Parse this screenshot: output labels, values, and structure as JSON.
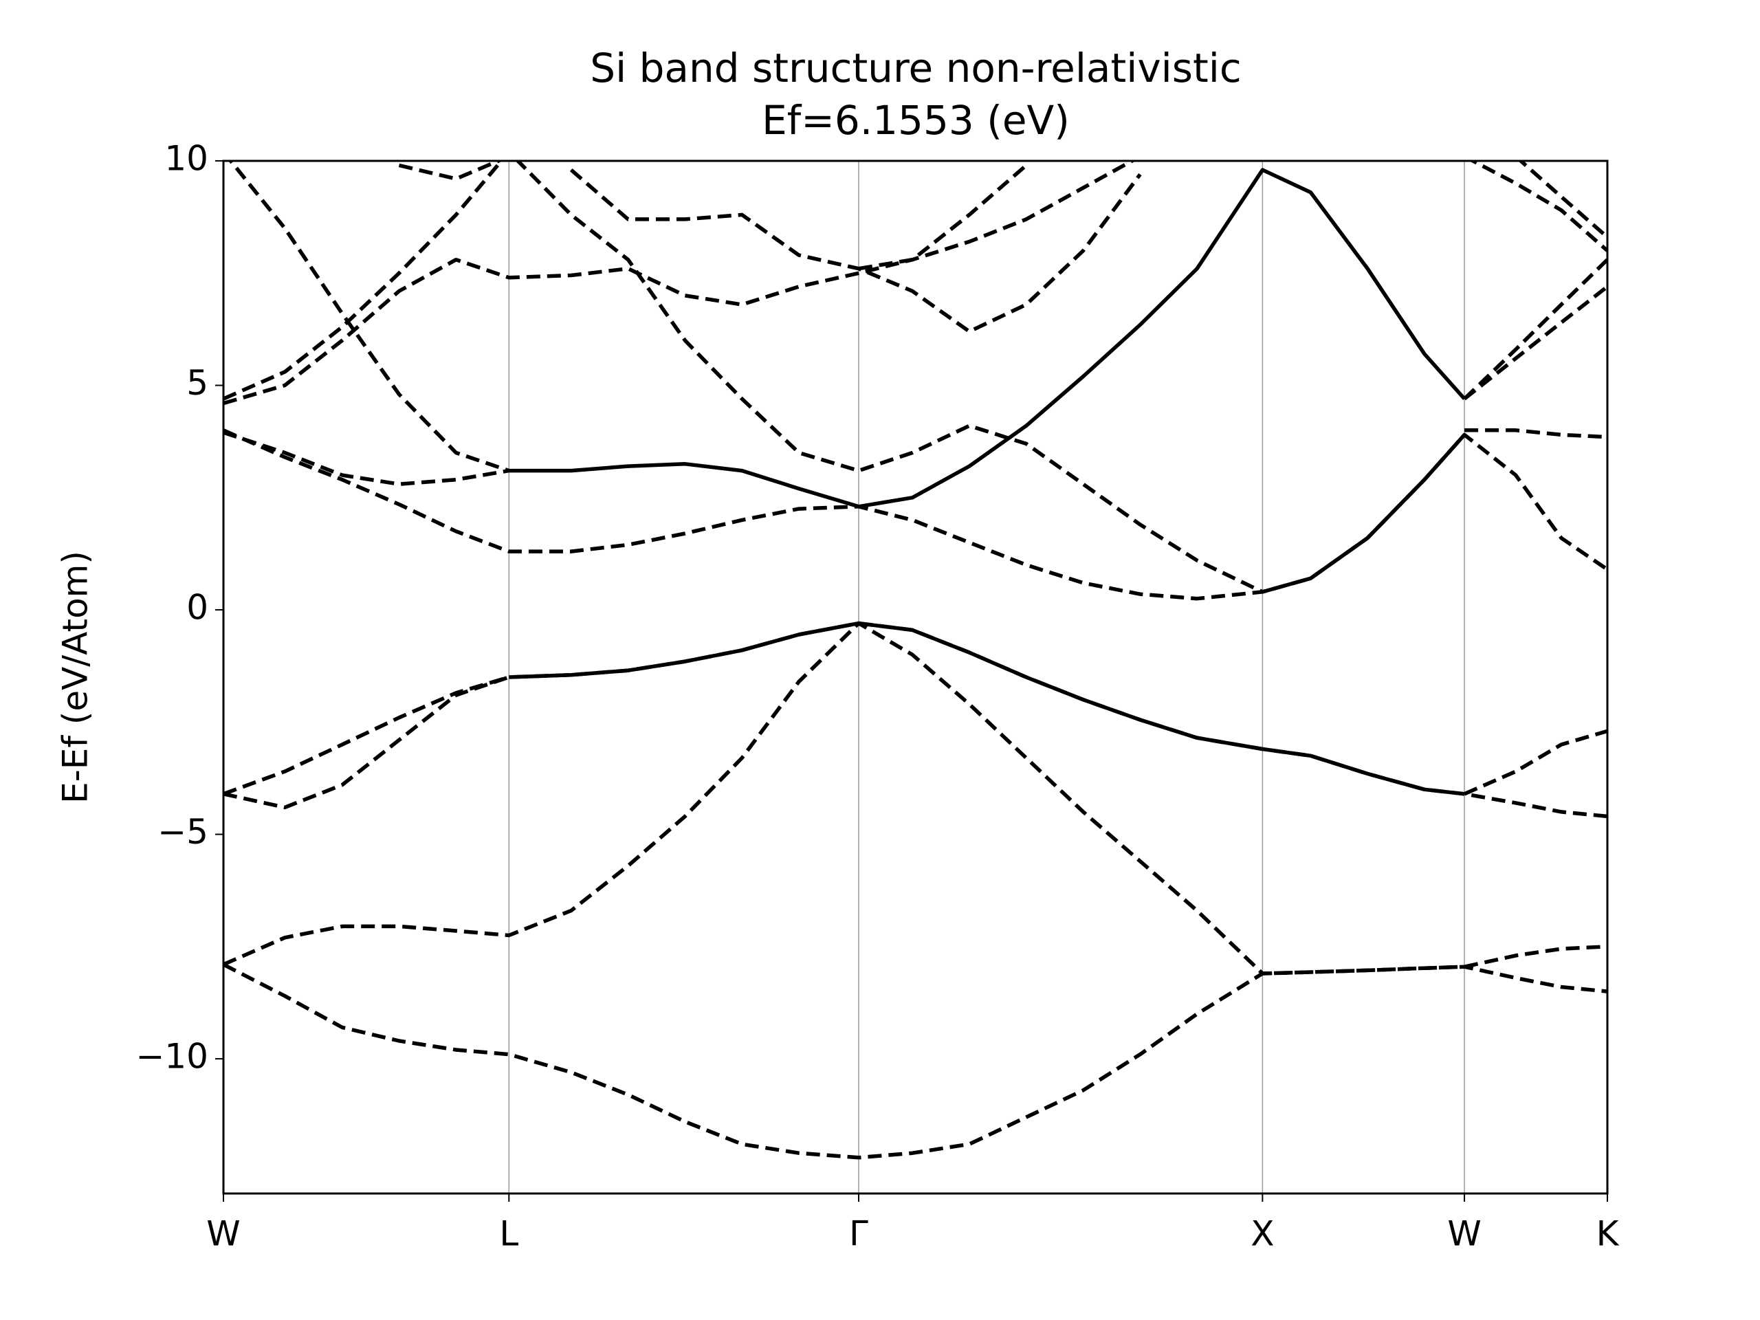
{
  "chart_data": {
    "type": "line",
    "title": "Si band structure non-relativistic",
    "subtitle": "Ef=6.1553 (eV)",
    "y_label": "E-Ef (eV/Atom)",
    "x": [
      0,
      0.152,
      0.294,
      0.435,
      0.576,
      0.707,
      0.861,
      1.002,
      1.143,
      1.284,
      1.425,
      1.573,
      1.706,
      1.847,
      1.988,
      2.129,
      2.27,
      2.411,
      2.573,
      2.692,
      2.833,
      2.974,
      3.073,
      3.2,
      3.313,
      3.427
    ],
    "xlim": [
      0,
      3.427
    ],
    "xticks": [
      {
        "value": 0,
        "label": "W"
      },
      {
        "value": 0.707,
        "label": "L"
      },
      {
        "value": 1.573,
        "label": "Γ"
      },
      {
        "value": 2.573,
        "label": "X"
      },
      {
        "value": 3.073,
        "label": "W"
      },
      {
        "value": 3.427,
        "label": "K"
      }
    ],
    "ylim": [
      -13,
      10
    ],
    "yticks": [
      {
        "value": -10,
        "label": "−10"
      },
      {
        "value": -5,
        "label": "−5"
      },
      0,
      5,
      10
    ],
    "xgrid": true,
    "series": [
      {
        "color": "#000000",
        "style": "dashed",
        "values": [
          -7.9,
          -8.6,
          -9.3,
          -9.6,
          -9.8,
          -9.9,
          -10.3,
          -10.8,
          -11.4,
          -11.9,
          -12.1,
          -12.2,
          -12.1,
          -11.9,
          -11.3,
          -10.7,
          -9.9,
          -9.0,
          -8.1,
          -8.07,
          -8.03,
          -7.98,
          -7.95,
          -8.2,
          -8.4,
          -8.5
        ]
      },
      {
        "color": "#000000",
        "style": "dashed",
        "values": [
          -7.9,
          -7.3,
          -7.05,
          -7.05,
          -7.15,
          -7.25,
          -6.7,
          -5.7,
          -4.6,
          -3.3,
          -1.6,
          -0.3,
          -1.0,
          -2.1,
          -3.3,
          -4.5,
          -5.6,
          -6.7,
          -8.1,
          -8.07,
          -8.03,
          -7.98,
          -7.95,
          -7.7,
          -7.55,
          -7.5
        ]
      },
      {
        "color": "#000000",
        "style": "dashed",
        "values": [
          -4.1,
          -4.4,
          -3.9,
          -2.9,
          -1.9,
          -1.5,
          -1.45,
          -1.35,
          -1.15,
          -0.9,
          -0.55,
          -0.3,
          -0.45,
          -0.95,
          -1.5,
          -2.0,
          -2.45,
          -2.85,
          -3.1,
          -3.25,
          -3.65,
          -4.0,
          -4.1,
          -4.3,
          -4.5,
          -4.6
        ]
      },
      {
        "color": "#000000",
        "style": "solid",
        "values": [
          null,
          null,
          null,
          null,
          null,
          -1.5,
          -1.45,
          -1.35,
          -1.15,
          -0.9,
          -0.55,
          -0.3,
          -0.45,
          -0.95,
          -1.5,
          -2.0,
          -2.45,
          -2.85,
          -3.1,
          -3.25,
          -3.65,
          -4.0,
          -4.1,
          null,
          null,
          null
        ]
      },
      {
        "color": "#000000",
        "style": "dashed",
        "values": [
          -4.1,
          -3.6,
          -3.0,
          -2.4,
          -1.85,
          -1.5,
          null,
          null,
          null,
          null,
          null,
          null,
          null,
          null,
          null,
          null,
          null,
          null,
          null,
          null,
          null,
          null,
          -4.1,
          -3.6,
          -3.0,
          -2.7
        ]
      },
      {
        "color": "#000000",
        "style": "dashed",
        "values": [
          4.0,
          3.4,
          2.9,
          2.35,
          1.75,
          1.3,
          1.3,
          1.45,
          1.7,
          2.0,
          2.25,
          2.3,
          2.0,
          1.5,
          1.0,
          0.6,
          0.35,
          0.25,
          0.4,
          0.7,
          1.6,
          2.9,
          3.9,
          3.0,
          1.6,
          0.9
        ]
      },
      {
        "color": "#000000",
        "style": "solid",
        "values": [
          null,
          null,
          null,
          null,
          null,
          3.1,
          3.1,
          3.2,
          3.25,
          3.1,
          2.7,
          2.3,
          2.5,
          3.2,
          4.1,
          5.2,
          6.35,
          7.6,
          9.8,
          9.3,
          7.6,
          5.7,
          4.7,
          null,
          null,
          null
        ]
      },
      {
        "color": "#000000",
        "style": "solid",
        "values": [
          null,
          null,
          null,
          null,
          null,
          null,
          null,
          null,
          null,
          null,
          null,
          null,
          null,
          null,
          null,
          null,
          null,
          null,
          0.4,
          0.7,
          1.6,
          2.9,
          3.9,
          null,
          null,
          null
        ]
      },
      {
        "color": "#000000",
        "style": "dashed",
        "values": [
          3.95,
          3.5,
          3.0,
          2.8,
          2.9,
          3.1,
          null,
          null,
          null,
          null,
          null,
          null,
          null,
          null,
          null,
          null,
          null,
          null,
          null,
          null,
          null,
          null,
          4.0,
          4.0,
          3.9,
          3.85
        ]
      },
      {
        "color": "#000000",
        "style": "dashed",
        "values": [
          4.7,
          5.3,
          6.3,
          7.5,
          8.8,
          10.2,
          8.8,
          7.8,
          6.0,
          4.7,
          3.5,
          3.1,
          3.5,
          4.1,
          3.7,
          2.8,
          1.9,
          1.1,
          0.4,
          null,
          null,
          null,
          4.7,
          5.8,
          6.8,
          7.8
        ]
      },
      {
        "color": "#000000",
        "style": "dashed",
        "values": [
          4.6,
          5.0,
          6.0,
          7.1,
          7.8,
          7.4,
          7.45,
          7.6,
          7.0,
          6.8,
          7.2,
          7.5,
          7.8,
          8.2,
          8.7,
          9.4,
          10.1,
          null,
          null,
          null,
          null,
          null,
          4.7,
          5.6,
          6.4,
          7.2
        ]
      },
      {
        "color": "#000000",
        "style": "dashed",
        "values": [
          10.2,
          8.5,
          6.6,
          4.8,
          3.5,
          3.1,
          null,
          null,
          null,
          null,
          null,
          null,
          null,
          null,
          null,
          null,
          null,
          null,
          null,
          null,
          null,
          null,
          null,
          null,
          null,
          null
        ]
      },
      {
        "color": "#000000",
        "style": "dashed",
        "values": [
          null,
          null,
          null,
          null,
          null,
          null,
          9.8,
          8.7,
          8.7,
          8.8,
          7.9,
          7.6,
          7.1,
          6.2,
          6.8,
          8.0,
          9.7,
          null,
          null,
          null,
          null,
          null,
          null,
          null,
          null,
          null
        ]
      },
      {
        "color": "#000000",
        "style": "dashed",
        "values": [
          null,
          null,
          null,
          9.9,
          9.6,
          10.1,
          null,
          null,
          null,
          null,
          null,
          7.6,
          7.8,
          8.8,
          9.9,
          null,
          null,
          null,
          null,
          null,
          null,
          null,
          10.1,
          9.5,
          8.9,
          8.0
        ]
      },
      {
        "color": "#000000",
        "style": "dashed",
        "values": [
          null,
          null,
          null,
          null,
          null,
          null,
          null,
          null,
          null,
          null,
          null,
          null,
          null,
          null,
          null,
          null,
          null,
          null,
          null,
          null,
          null,
          null,
          null,
          10.1,
          9.2,
          8.3
        ]
      }
    ]
  }
}
